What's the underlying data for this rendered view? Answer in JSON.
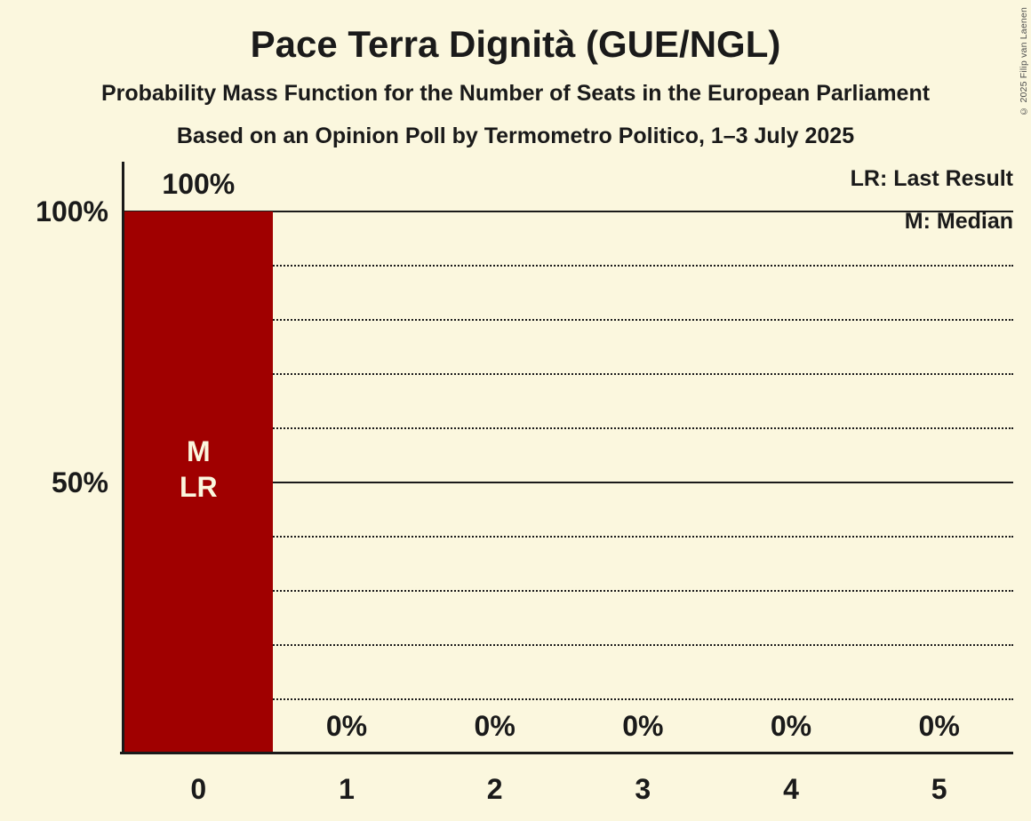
{
  "copyright": "© 2025 Filip van Laenen",
  "colors": {
    "background": "#FBF7DE",
    "bar": "#A00000",
    "text": "#1A1A1A",
    "bar_label": "#FBF7DE",
    "copyright": "#4D4D4D"
  },
  "chart_data": {
    "type": "bar",
    "title": "Pace Terra Dignità (GUE/NGL)",
    "subtitle": "Probability Mass Function for the Number of Seats in the European Parliament",
    "subsubtitle": "Based on an Opinion Poll by Termometro Politico, 1–3 July 2025",
    "categories": [
      "0",
      "1",
      "2",
      "3",
      "4",
      "5"
    ],
    "values": [
      100,
      0,
      0,
      0,
      0,
      0
    ],
    "value_labels": [
      "100%",
      "0%",
      "0%",
      "0%",
      "0%",
      "0%"
    ],
    "xlabel": "",
    "ylabel": "",
    "ylim": [
      0,
      100
    ],
    "yticks": [
      {
        "value": 100,
        "label": "100%"
      },
      {
        "value": 50,
        "label": "50%"
      }
    ],
    "gridlines": {
      "solid": [
        100,
        50
      ],
      "dotted": [
        90,
        80,
        70,
        60,
        40,
        30,
        20,
        10
      ]
    },
    "legend": [
      "LR: Last Result",
      "M: Median"
    ],
    "legend_position": "top-right",
    "bar_annotations": [
      {
        "category": "0",
        "lines": [
          "M",
          "LR"
        ]
      }
    ]
  }
}
